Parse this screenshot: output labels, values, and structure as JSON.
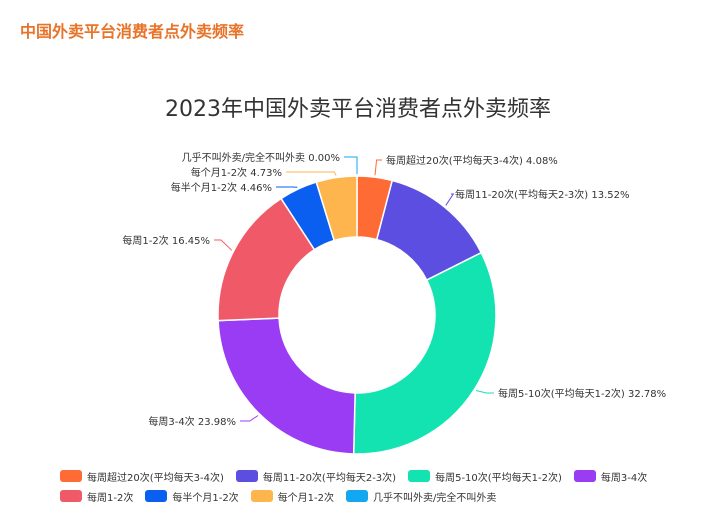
{
  "page_heading": "中国外卖平台消费者点外卖频率",
  "chart_data": {
    "type": "pie",
    "variant": "donut",
    "title": "2023年中国外卖平台消费者点外卖频率",
    "unit": "%",
    "legend_position": "bottom",
    "slices": [
      {
        "name": "每周超过20次(平均每天3-4次)",
        "value": 4.08,
        "color": "#ff6b35"
      },
      {
        "name": "每周11-20次(平均每天2-3次)",
        "value": 13.52,
        "color": "#5b4ee0"
      },
      {
        "name": "每周5-10次(平均每天1-2次)",
        "value": 32.78,
        "color": "#13e3b0"
      },
      {
        "name": "每周3-4次",
        "value": 23.98,
        "color": "#9b3cf5"
      },
      {
        "name": "每周1-2次",
        "value": 16.45,
        "color": "#f05a68"
      },
      {
        "name": "每半个月1-2次",
        "value": 4.46,
        "color": "#0b5ff0"
      },
      {
        "name": "每个月1-2次",
        "value": 4.73,
        "color": "#ffb54d"
      },
      {
        "name": "几乎不叫外卖/完全不叫外卖",
        "value": 0.0,
        "color": "#12a7ef"
      }
    ],
    "labels": [
      "每周超过20次(平均每天3-4次) 4.08%",
      "每周11-20次(平均每天2-3次) 13.52%",
      "每周5-10次(平均每天1-2次) 32.78%",
      "每周3-4次 23.98%",
      "每周1-2次 16.45%",
      "每半个月1-2次 4.46%",
      "每个月1-2次 4.73%",
      "几乎不叫外卖/完全不叫外卖 0.00%"
    ]
  }
}
